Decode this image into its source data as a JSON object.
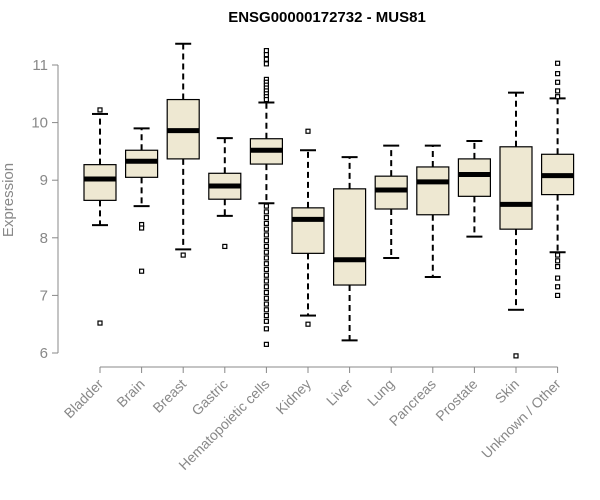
{
  "chart_data": {
    "type": "boxplot",
    "title": "ENSG00000172732 - MUS81",
    "xlabel": "",
    "ylabel": "Expression",
    "ylim": [
      6,
      11
    ],
    "yticks": [
      "6",
      "7",
      "8",
      "9",
      "10",
      "11"
    ],
    "grid": false,
    "legend": "none",
    "colors": {
      "box_fill": "#EEE8D2",
      "stroke": "#000000",
      "axis_text": "#888888"
    },
    "categories": [
      "Bladder",
      "Brain",
      "Breast",
      "Gastric",
      "Hematopoietic cells",
      "Kidney",
      "Liver",
      "Lung",
      "Pancreas",
      "Prostate",
      "Skin",
      "Unknown / Other"
    ],
    "boxes": [
      {
        "name": "Bladder",
        "whisker_low": 8.22,
        "q1": 8.65,
        "median": 9.02,
        "q3": 9.27,
        "whisker_high": 10.15,
        "outliers": [
          6.52,
          10.22
        ]
      },
      {
        "name": "Brain",
        "whisker_low": 8.55,
        "q1": 9.05,
        "median": 9.33,
        "q3": 9.52,
        "whisker_high": 9.9,
        "outliers": [
          8.23,
          8.17,
          7.42
        ]
      },
      {
        "name": "Breast",
        "whisker_low": 7.8,
        "q1": 9.37,
        "median": 9.86,
        "q3": 10.4,
        "whisker_high": 11.37,
        "outliers": [
          7.7
        ]
      },
      {
        "name": "Gastric",
        "whisker_low": 8.38,
        "q1": 8.67,
        "median": 8.9,
        "q3": 9.12,
        "whisker_high": 9.73,
        "outliers": [
          7.85
        ]
      },
      {
        "name": "Hematopoietic cells",
        "whisker_low": 8.6,
        "q1": 9.28,
        "median": 9.52,
        "q3": 9.72,
        "whisker_high": 10.35,
        "outliers": [
          11.25,
          11.18,
          11.1,
          11.02,
          10.75,
          10.7,
          10.65,
          10.6,
          10.55,
          10.5,
          10.45,
          10.4,
          8.55,
          8.45,
          8.35,
          8.25,
          8.15,
          8.05,
          7.95,
          7.85,
          7.75,
          7.65,
          7.55,
          7.45,
          7.35,
          7.25,
          7.15,
          7.05,
          6.95,
          6.85,
          6.75,
          6.65,
          6.55,
          6.42,
          6.15
        ]
      },
      {
        "name": "Kidney",
        "whisker_low": 6.65,
        "q1": 7.73,
        "median": 8.32,
        "q3": 8.52,
        "whisker_high": 9.52,
        "outliers": [
          9.85,
          6.5
        ]
      },
      {
        "name": "Liver",
        "whisker_low": 6.22,
        "q1": 7.18,
        "median": 7.62,
        "q3": 8.85,
        "whisker_high": 9.4,
        "outliers": []
      },
      {
        "name": "Lung",
        "whisker_low": 7.65,
        "q1": 8.5,
        "median": 8.83,
        "q3": 9.07,
        "whisker_high": 9.6,
        "outliers": []
      },
      {
        "name": "Pancreas",
        "whisker_low": 7.32,
        "q1": 8.4,
        "median": 8.97,
        "q3": 9.23,
        "whisker_high": 9.6,
        "outliers": []
      },
      {
        "name": "Prostate",
        "whisker_low": 8.02,
        "q1": 8.72,
        "median": 9.1,
        "q3": 9.37,
        "whisker_high": 9.68,
        "outliers": []
      },
      {
        "name": "Skin",
        "whisker_low": 6.75,
        "q1": 8.15,
        "median": 8.58,
        "q3": 9.58,
        "whisker_high": 10.52,
        "outliers": [
          5.95
        ]
      },
      {
        "name": "Unknown / Other",
        "whisker_low": 7.75,
        "q1": 8.75,
        "median": 9.08,
        "q3": 9.45,
        "whisker_high": 10.42,
        "outliers": [
          11.03,
          10.85,
          10.7,
          10.55,
          10.45,
          7.7,
          7.6,
          7.5,
          7.3,
          7.15,
          7.0
        ]
      }
    ]
  }
}
